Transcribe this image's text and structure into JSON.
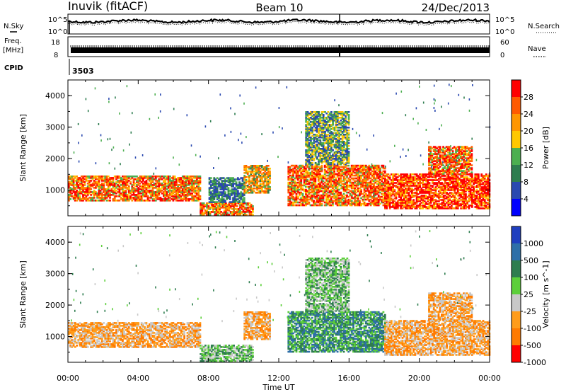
{
  "header": {
    "station": "Inuvik (fitACF)",
    "beam": "Beam 10",
    "date": "24/Dec/2013"
  },
  "noise_panel": {
    "left_label": "N.Sky",
    "right_label": "N.Search",
    "tick_top": "10^5",
    "tick_bottom": "10^0"
  },
  "freq_panel": {
    "left_label_1": "Freq.",
    "left_label_2": "[MHz]",
    "right_label": "Nave",
    "left_ticks": [
      "18",
      "8"
    ],
    "right_ticks": [
      "60",
      "0"
    ]
  },
  "cpid": {
    "label": "CPID",
    "value": "3503"
  },
  "colors": {
    "power": [
      "#0000ff",
      "#2a49b0",
      "#2e7d4f",
      "#4caf50",
      "#ffc800",
      "#ff9600",
      "#ff5a00",
      "#ff0000"
    ],
    "velocity": [
      "#1f3fbf",
      "#2e6fa8",
      "#2e7d4f",
      "#5ccf3a",
      "#c8c8c8",
      "#ff9c1a",
      "#ff7a00",
      "#ff0000"
    ]
  },
  "chart_data": [
    {
      "type": "heatmap",
      "name": "power",
      "ylabel": "Slant Range [km]",
      "xlabel": "",
      "xlim": [
        "00:00",
        "24:00"
      ],
      "ylim": [
        180,
        4500
      ],
      "x_ticks": [
        "00:00",
        "04:00",
        "08:00",
        "12:00",
        "16:00",
        "20:00",
        "00:00"
      ],
      "y_ticks": [
        1000,
        2000,
        3000,
        4000
      ],
      "colorbar": {
        "label": "Power [dB]",
        "levels": [
          "28",
          "24",
          "20",
          "16",
          "12",
          "8",
          "4"
        ]
      },
      "echo_regions": [
        {
          "time_start": 0.0,
          "time_end": 7.5,
          "range_min": 650,
          "range_max": 1450,
          "dominant_level": 24
        },
        {
          "time_start": 7.5,
          "time_end": 10.5,
          "range_min": 200,
          "range_max": 600,
          "dominant_level": 24
        },
        {
          "time_start": 8.0,
          "time_end": 10.0,
          "range_min": 600,
          "range_max": 1400,
          "dominant_level": 8
        },
        {
          "time_start": 10.0,
          "time_end": 11.5,
          "range_min": 900,
          "range_max": 1800,
          "dominant_level": 20
        },
        {
          "time_start": 12.5,
          "time_end": 18.0,
          "range_min": 500,
          "range_max": 1800,
          "dominant_level": 24
        },
        {
          "time_start": 13.5,
          "time_end": 16.0,
          "range_min": 1800,
          "range_max": 3500,
          "dominant_level": 12
        },
        {
          "time_start": 18.0,
          "time_end": 24.0,
          "range_min": 400,
          "range_max": 1500,
          "dominant_level": 28
        },
        {
          "time_start": 20.5,
          "time_end": 23.0,
          "range_min": 1500,
          "range_max": 2400,
          "dominant_level": 24
        }
      ]
    },
    {
      "type": "heatmap",
      "name": "velocity",
      "ylabel": "Slant Range [km]",
      "xlabel": "Time UT",
      "xlim": [
        "00:00",
        "24:00"
      ],
      "ylim": [
        180,
        4500
      ],
      "x_ticks": [
        "00:00",
        "04:00",
        "08:00",
        "12:00",
        "16:00",
        "20:00",
        "00:00"
      ],
      "y_ticks": [
        1000,
        2000,
        3000,
        4000
      ],
      "colorbar": {
        "label": "Velocity [m s^-1]",
        "levels": [
          "1000",
          "500",
          "100",
          "25",
          "-25",
          "-100",
          "-500",
          "-1000"
        ]
      },
      "echo_regions": [
        {
          "time_start": 0.0,
          "time_end": 7.5,
          "range_min": 650,
          "range_max": 1450,
          "dominant_level": -100
        },
        {
          "time_start": 7.5,
          "time_end": 10.5,
          "range_min": 200,
          "range_max": 700,
          "dominant_level": 25
        },
        {
          "time_start": 10.0,
          "time_end": 11.5,
          "range_min": 900,
          "range_max": 1800,
          "dominant_level": -100
        },
        {
          "time_start": 12.5,
          "time_end": 18.0,
          "range_min": 500,
          "range_max": 1800,
          "dominant_level": 100
        },
        {
          "time_start": 13.5,
          "time_end": 16.0,
          "range_min": 1800,
          "range_max": 3500,
          "dominant_level": 25
        },
        {
          "time_start": 18.0,
          "time_end": 24.0,
          "range_min": 400,
          "range_max": 1500,
          "dominant_level": -100
        },
        {
          "time_start": 20.5,
          "time_end": 23.0,
          "range_min": 1500,
          "range_max": 2400,
          "dominant_level": -100
        }
      ]
    }
  ]
}
